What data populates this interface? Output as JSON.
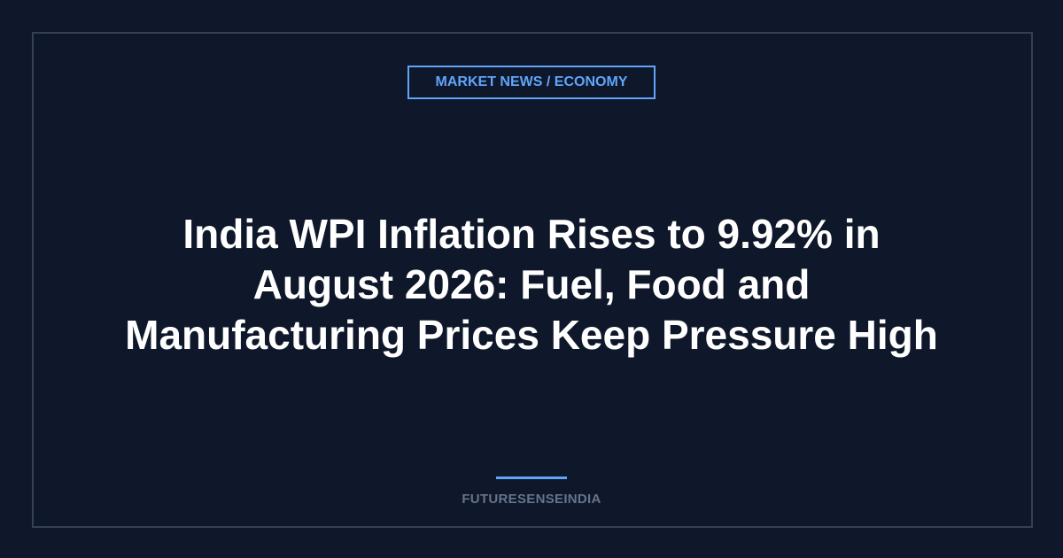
{
  "badge": "MARKET NEWS / ECONOMY",
  "title_lines": [
    "India WPI Inflation Rises to 9.92% in",
    "August 2026: Fuel, Food and",
    "Manufacturing Prices Keep Pressure High"
  ],
  "footer": "FUTURESENSEINDIA"
}
